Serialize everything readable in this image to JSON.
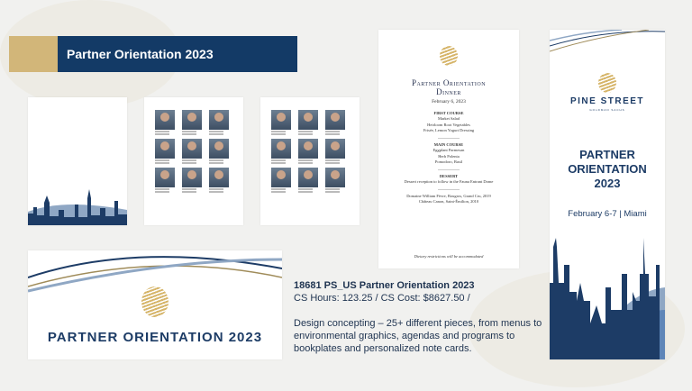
{
  "header": {
    "title": "Partner Orientation 2023"
  },
  "colors": {
    "navy": "#133a66",
    "gold": "#d2b679",
    "background": "#f1f1ef"
  },
  "menu": {
    "title_line1": "Partner Orientation",
    "title_line2": "Dinner",
    "date": "February 6, 2023",
    "first_course": {
      "heading": "FIRST COURSE",
      "items": [
        "Market Salad",
        "Heirloom Root Vegetables",
        "Frisée, Lemon Yogurt Dressing"
      ]
    },
    "main_course": {
      "heading": "MAIN COURSE",
      "items": [
        "Eggplant Parmesan",
        "Herb Polenta",
        "Pomodoro, Basil"
      ]
    },
    "dessert": {
      "heading": "DESSERT",
      "items": [
        "Dessert reception to follow in the Fauna Entrant Dome"
      ]
    },
    "wines": [
      "Domaine William Fèvre, Bougros, Grand Cru, 2019",
      "Château Canon, Saint-Émilion, 2010"
    ],
    "footer": "Dietary restrictions will be accommodated"
  },
  "vertical_banner": {
    "brand": "PINE STREET",
    "sub_brand": "GOLDMAN SACHS",
    "title_lines": [
      "PARTNER",
      "ORIENTATION",
      "2023"
    ],
    "details": "February 6-7 | Miami"
  },
  "horizontal_banner": {
    "title": "PARTNER ORIENTATION 2023"
  },
  "description": {
    "project": "18681 PS_US Partner Orientation 2023",
    "stats": "CS Hours: 123.25 / CS Cost: $8627.50 /",
    "body": "Design concepting – 25+ different pieces, from menus to environmental graphics, agendas and programs to bookplates and personalized note cards."
  }
}
